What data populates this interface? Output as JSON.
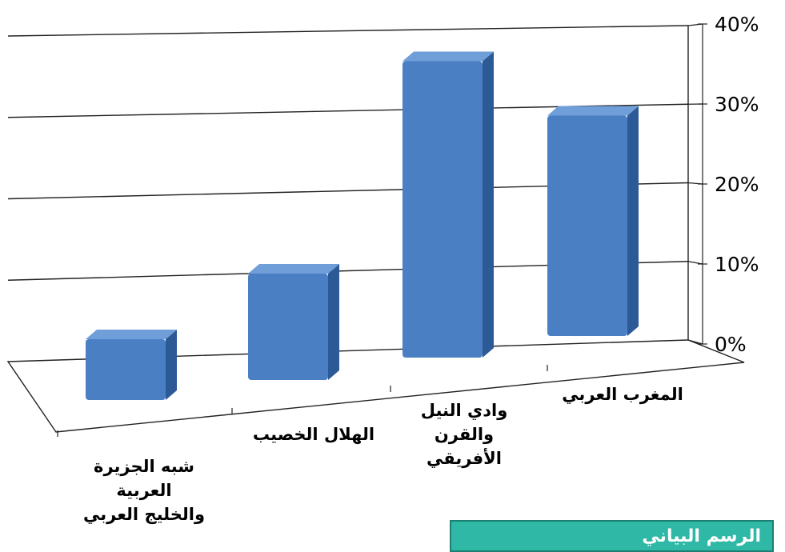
{
  "chart_data": {
    "type": "bar",
    "categories": [
      [
        "شبه الجزيرة",
        "العربية",
        "والخليج العربي"
      ],
      [
        "الهلال الخصيب"
      ],
      [
        "وادي النيل",
        "والقرن",
        "الأفريقي"
      ],
      [
        "المغرب العربي"
      ]
    ],
    "values": [
      8,
      14,
      39,
      29
    ],
    "value_unit": "%",
    "yticks": [
      "0%",
      "10%",
      "20%",
      "30%",
      "40%"
    ],
    "ylim": [
      0,
      40
    ],
    "title": "",
    "xlabel": "",
    "ylabel": "",
    "grid": true,
    "legend": "none",
    "projection": "3d-perspective",
    "bar_color": "#4a7fc4",
    "bar_top_color": "#6f9ed8",
    "bar_side_color": "#2c5a97"
  },
  "caption": {
    "text": "الرسم البياني",
    "background": "#2fb8a6"
  }
}
